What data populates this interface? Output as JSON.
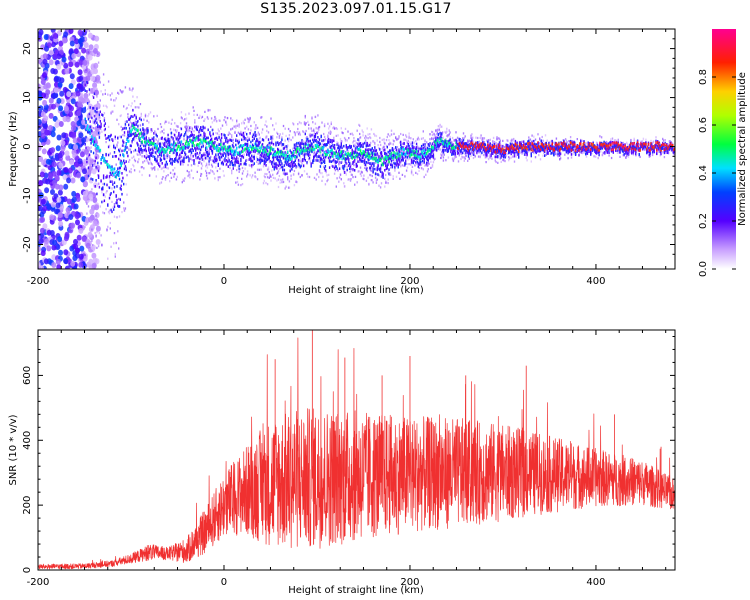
{
  "title": "S135.2023.097.01.15.G17",
  "chart_data": [
    {
      "type": "heatmap",
      "xlabel": "Height of straight line (km)",
      "ylabel": "Frequency (Hz)",
      "xlim": [
        -200,
        485
      ],
      "ylim": [
        -25,
        24
      ],
      "xticks": [
        -200,
        0,
        200,
        400
      ],
      "yticks": [
        -20,
        -10,
        0,
        10,
        20
      ],
      "colorbar": {
        "label": "Normalized spectral amplitude",
        "range": [
          0,
          1
        ],
        "ticks": [
          0.0,
          0.2,
          0.4,
          0.6,
          0.8
        ],
        "tick_labels": [
          "0.0",
          "0.2",
          "0.4",
          "0.6",
          "0.8"
        ],
        "colormap": [
          "#ffffff",
          "#a855f7",
          "#3300ff",
          "#00ffff",
          "#00ff00",
          "#ffff00",
          "#ff0000",
          "#ff00ff"
        ]
      },
      "ridge": {
        "x": [
          -150,
          -130,
          -115,
          -100,
          -85,
          -70,
          -50,
          -30,
          -10,
          10,
          30,
          50,
          70,
          90,
          110,
          130,
          150,
          170,
          190,
          210,
          230,
          250,
          270,
          300,
          330,
          360,
          400,
          440,
          485
        ],
        "y": [
          5,
          -3,
          -6,
          4,
          1,
          -1,
          0,
          1,
          0,
          -1,
          0,
          -1,
          -2,
          0,
          -1,
          -2,
          -1,
          -3,
          -1,
          -2,
          1,
          0,
          0,
          -0.5,
          0,
          0,
          0,
          0,
          0
        ],
        "spread_hz": [
          10,
          9,
          8,
          4,
          3,
          3,
          3,
          3.5,
          3,
          3,
          3,
          3,
          3,
          3,
          3,
          2.5,
          2.5,
          2.5,
          2,
          2,
          1.5,
          1.2,
          1,
          1,
          1,
          0.8,
          0.8,
          0.7,
          0.6
        ]
      },
      "noise_region_x": [
        -200,
        -150
      ]
    },
    {
      "type": "line",
      "xlabel": "Height of straight line (km)",
      "ylabel": "SNR (10 * v/v)",
      "xlim": [
        -200,
        485
      ],
      "ylim": [
        0,
        740
      ],
      "xticks": [
        -200,
        0,
        200,
        400
      ],
      "yticks": [
        0,
        200,
        400,
        600
      ],
      "color": "#f03030",
      "envelope": {
        "x": [
          -200,
          -150,
          -120,
          -100,
          -80,
          -60,
          -40,
          -20,
          0,
          20,
          50,
          80,
          100,
          150,
          200,
          250,
          300,
          350,
          400,
          450,
          485
        ],
        "mean": [
          10,
          12,
          20,
          35,
          55,
          50,
          60,
          120,
          200,
          240,
          270,
          280,
          285,
          290,
          295,
          300,
          300,
          295,
          285,
          270,
          230
        ],
        "amplitude": [
          8,
          8,
          10,
          15,
          25,
          20,
          40,
          70,
          100,
          130,
          200,
          220,
          220,
          200,
          180,
          170,
          150,
          120,
          90,
          70,
          50
        ]
      },
      "peaks": [
        {
          "x": 95,
          "y": 740
        },
        {
          "x": 55,
          "y": 650
        },
        {
          "x": 130,
          "y": 655
        },
        {
          "x": 200,
          "y": 660
        },
        {
          "x": 325,
          "y": 630
        },
        {
          "x": 260,
          "y": 600
        },
        {
          "x": 170,
          "y": 600
        },
        {
          "x": 420,
          "y": 480
        },
        {
          "x": 470,
          "y": 380
        }
      ]
    }
  ]
}
